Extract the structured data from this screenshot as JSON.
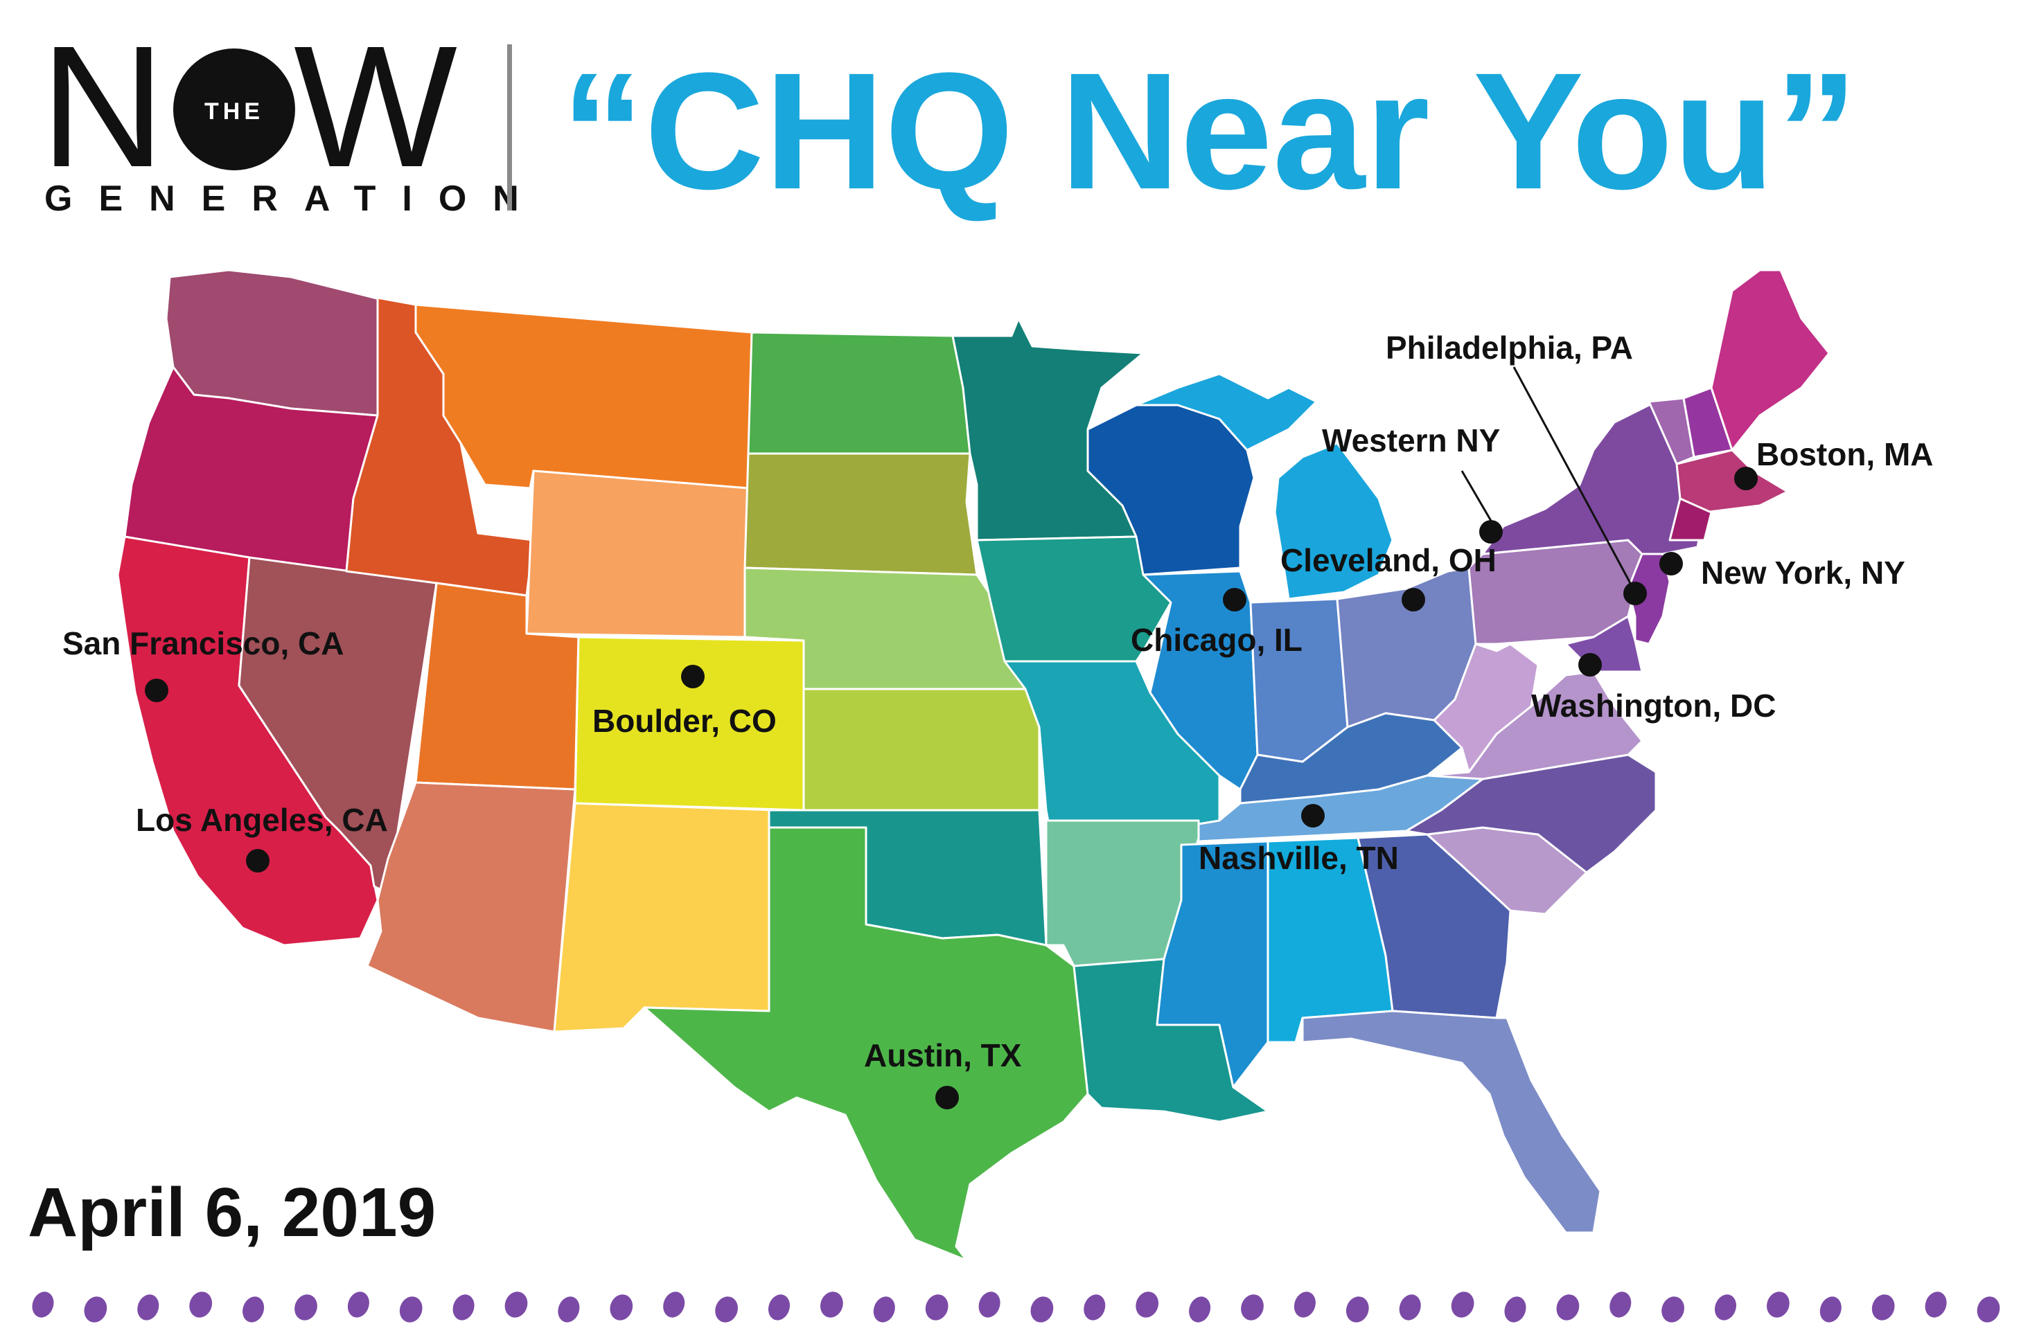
{
  "logo": {
    "now_left": "N",
    "now_circle_text": "THE",
    "now_right": "W",
    "generation": "GENERATION"
  },
  "headline": "“CHQ Near You”",
  "date": "April 6, 2019",
  "colors": {
    "headline": "#1aa7dc",
    "text": "#111111",
    "dots": "#7b4aa6",
    "divider": "#8a8a8a"
  },
  "cities": [
    {
      "label": "San Francisco, CA"
    },
    {
      "label": "Los Angeles, CA"
    },
    {
      "label": "Boulder, CO"
    },
    {
      "label": "Austin, TX"
    },
    {
      "label": "Chicago, IL"
    },
    {
      "label": "Nashville, TN"
    },
    {
      "label": "Cleveland, OH"
    },
    {
      "label": "Western NY"
    },
    {
      "label": "Philadelphia, PA"
    },
    {
      "label": "Boston, MA"
    },
    {
      "label": "New York, NY"
    },
    {
      "label": "Washington, DC"
    }
  ]
}
